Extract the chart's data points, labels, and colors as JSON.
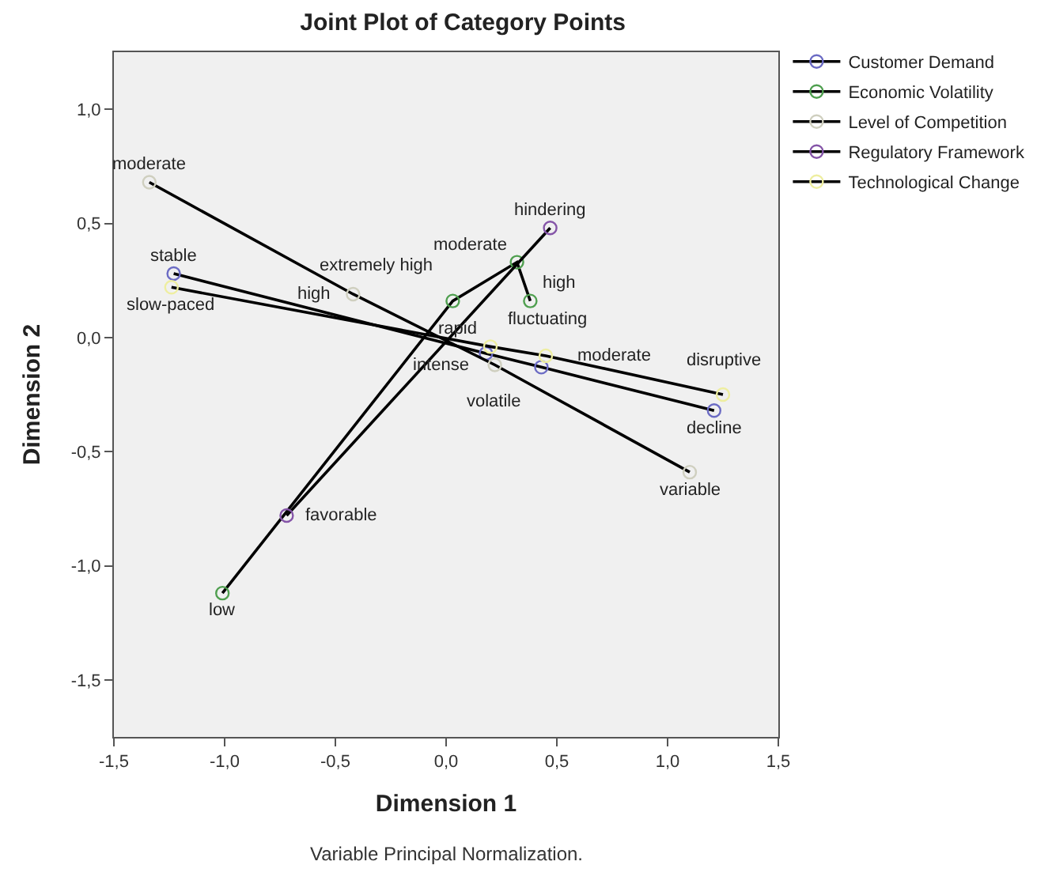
{
  "chart_data": {
    "type": "line",
    "title": "Joint Plot of Category Points",
    "xlabel": "Dimension 1",
    "ylabel": "Dimension 2",
    "annotations": [
      "Variable Principal Normalization."
    ],
    "xlim": [
      -1.5,
      1.5
    ],
    "ylim": [
      -1.75,
      1.25
    ],
    "xticks": [
      {
        "value": -1.5,
        "label": "-1,5"
      },
      {
        "value": -1.0,
        "label": "-1,0"
      },
      {
        "value": -0.5,
        "label": "-0,5"
      },
      {
        "value": 0,
        "label": "0,0"
      },
      {
        "value": 0.5,
        "label": "0,5"
      },
      {
        "value": 1.0,
        "label": "1,0"
      },
      {
        "value": 1.5,
        "label": "1,5"
      }
    ],
    "yticks": [
      {
        "value": -1.5,
        "label": "-1,5"
      },
      {
        "value": -1.0,
        "label": "-1,0"
      },
      {
        "value": -0.5,
        "label": "-0,5"
      },
      {
        "value": 0,
        "label": "0,0"
      },
      {
        "value": 0.5,
        "label": "0,5"
      },
      {
        "value": 1.0,
        "label": "1,0"
      }
    ],
    "grid": false,
    "legend": "top right",
    "marker": "circle",
    "line_style": "solid",
    "series": [
      {
        "name": "Customer Demand",
        "color": "#6b6bc4",
        "x": [
          -1.23,
          0.18,
          0.43,
          1.21
        ],
        "values": [
          0.28,
          -0.07,
          -0.13,
          -0.32
        ],
        "value_labels": [
          "stable",
          "fluctuating",
          "volatile",
          "decline"
        ]
      },
      {
        "name": "Economic Volatility",
        "color": "#4f9f4f",
        "x": [
          -1.01,
          0.03,
          0.32,
          0.38
        ],
        "values": [
          -1.12,
          0.16,
          0.33,
          0.16
        ],
        "value_labels": [
          "low",
          "extremely high",
          "moderate",
          "high"
        ]
      },
      {
        "name": "Level of Competition",
        "color": "#cfcfbf",
        "x": [
          -1.34,
          -0.42,
          0.22,
          1.1
        ],
        "values": [
          0.68,
          0.19,
          -0.12,
          -0.59
        ],
        "value_labels": [
          "moderate",
          "high",
          "intense",
          "variable"
        ]
      },
      {
        "name": "Regulatory Framework",
        "color": "#8555a8",
        "x": [
          -0.72,
          0.47
        ],
        "values": [
          -0.78,
          0.48
        ],
        "value_labels": [
          "favorable",
          "hindering"
        ]
      },
      {
        "name": "Technological Change",
        "color": "#eeeea0",
        "x": [
          -1.24,
          0.2,
          0.45,
          1.25
        ],
        "values": [
          0.22,
          -0.04,
          -0.08,
          -0.25
        ],
        "value_labels": [
          "slow-paced",
          "rapid",
          "moderate",
          "disruptive"
        ]
      }
    ]
  }
}
